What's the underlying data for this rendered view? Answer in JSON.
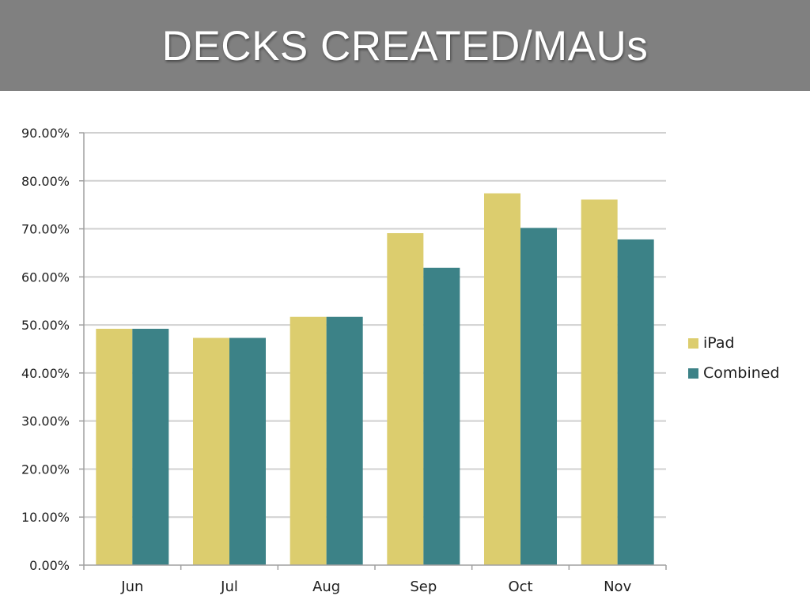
{
  "title": "DECKS CREATED/MAUs",
  "chart_data": {
    "type": "bar",
    "categories": [
      "Jun",
      "Jul",
      "Aug",
      "Sep",
      "Oct",
      "Nov"
    ],
    "series": [
      {
        "name": "iPad",
        "color": "#DCCD6E",
        "values": [
          49.2,
          47.3,
          51.7,
          69.1,
          77.4,
          76.1
        ]
      },
      {
        "name": "Combined",
        "color": "#3C8287",
        "values": [
          49.2,
          47.3,
          51.7,
          61.9,
          70.2,
          67.8
        ]
      }
    ],
    "yticks": [
      "0.00%",
      "10.00%",
      "20.00%",
      "30.00%",
      "40.00%",
      "50.00%",
      "60.00%",
      "70.00%",
      "80.00%",
      "90.00%"
    ],
    "ylim": [
      0,
      90
    ],
    "ytick_step": 10,
    "grid": true,
    "legend_position": "right"
  }
}
